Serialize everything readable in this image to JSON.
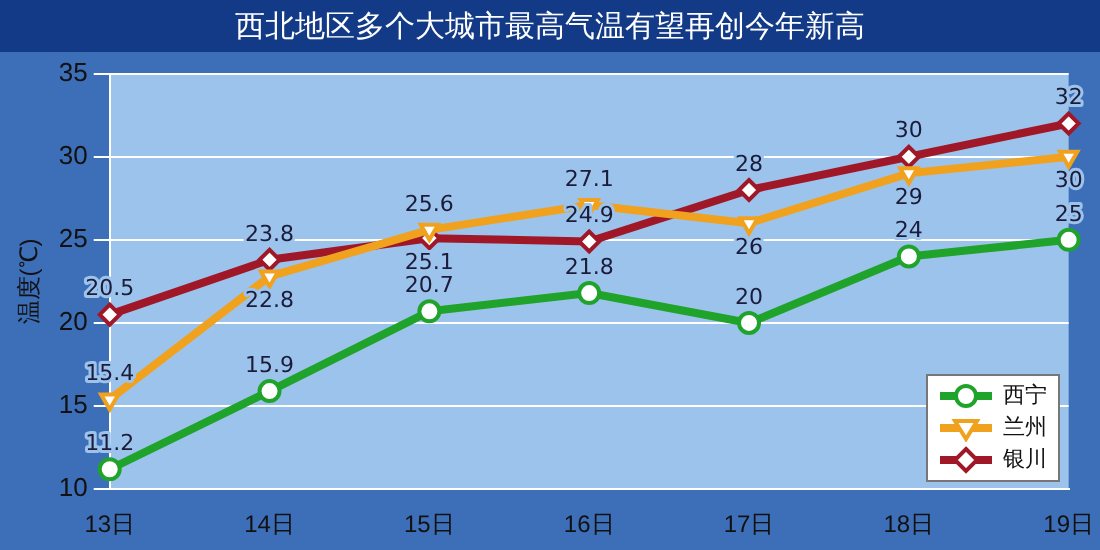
{
  "chart_data": {
    "type": "line",
    "title": "西北地区多个大城市最高气温有望再创今年新高",
    "ylabel": "温度(℃)",
    "categories": [
      "13日",
      "14日",
      "15日",
      "16日",
      "17日",
      "18日",
      "19日"
    ],
    "series": [
      {
        "name": "西宁",
        "color": "#1fa32a",
        "marker": "circle",
        "values": [
          11.2,
          15.9,
          20.7,
          21.8,
          20,
          24,
          25
        ]
      },
      {
        "name": "兰州",
        "color": "#f0a21e",
        "marker": "triangle",
        "values": [
          15.4,
          22.8,
          25.6,
          27.1,
          26,
          29,
          30
        ]
      },
      {
        "name": "银川",
        "color": "#a01828",
        "marker": "diamond",
        "values": [
          20.5,
          23.8,
          25.1,
          24.9,
          28,
          30,
          32
        ]
      }
    ],
    "ylim": [
      10,
      35
    ],
    "yticks": [
      10,
      15,
      20,
      25,
      30,
      35
    ],
    "grid": "y",
    "legend": "bottom right",
    "data_labels": true
  }
}
